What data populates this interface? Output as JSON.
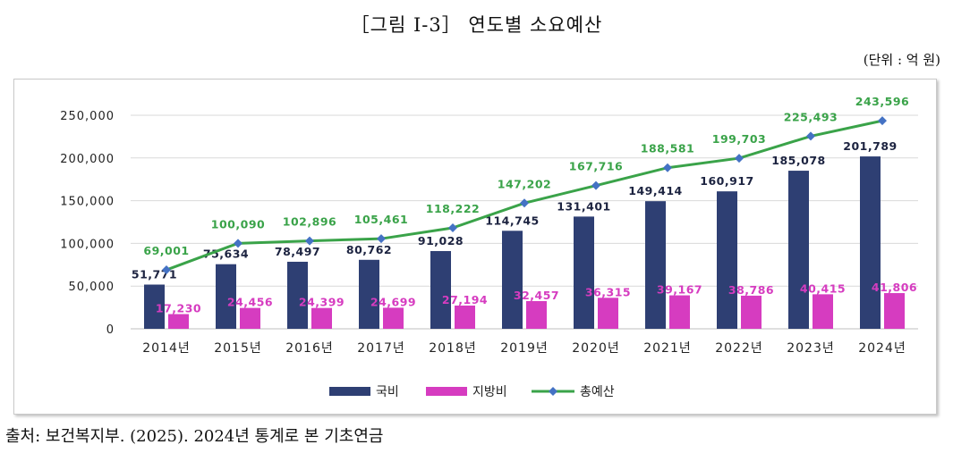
{
  "title": "［그림 Ⅰ-3］ 연도별 소요예산",
  "unit_note": "(단위 : 억 원)",
  "source": "출처: 보건복지부. (2025). 2024년 통계로 본 기초연금",
  "colors": {
    "national": "#2e3f73",
    "local": "#d63cc0",
    "total": "#3aa349",
    "total_marker": "#4472c4",
    "axis_text": "#222222",
    "grid": "#d9d9d9"
  },
  "chart_data": {
    "type": "bar",
    "categories": [
      "2014년",
      "2015년",
      "2016년",
      "2017년",
      "2018년",
      "2019년",
      "2020년",
      "2021년",
      "2022년",
      "2023년",
      "2024년"
    ],
    "series": [
      {
        "name": "국비",
        "type": "bar",
        "values": [
          51771,
          75634,
          78497,
          80762,
          91028,
          114745,
          131401,
          149414,
          160917,
          185078,
          201789
        ],
        "labels": [
          "51,771",
          "75,634",
          "78,497",
          "80,762",
          "91,028",
          "114,745",
          "131,401",
          "149,414",
          "160,917",
          "185,078",
          "201,789"
        ]
      },
      {
        "name": "지방비",
        "type": "bar",
        "values": [
          17230,
          24456,
          24399,
          24699,
          27194,
          32457,
          36315,
          39167,
          38786,
          40415,
          41806
        ],
        "labels": [
          "17,230",
          "24,456",
          "24,399",
          "24,699",
          "27,194",
          "32,457",
          "36,315",
          "39,167",
          "38,786",
          "40,415",
          "41,806"
        ]
      },
      {
        "name": "총예산",
        "type": "line",
        "values": [
          69001,
          100090,
          102896,
          105461,
          118222,
          147202,
          167716,
          188581,
          199703,
          225493,
          243596
        ],
        "labels": [
          "69,001",
          "100,090",
          "102,896",
          "105,461",
          "118,222",
          "147,202",
          "167,716",
          "188,581",
          "199,703",
          "225,493",
          "243,596"
        ]
      }
    ],
    "ylim": [
      0,
      250000
    ],
    "yticks": [
      0,
      50000,
      100000,
      150000,
      200000,
      250000
    ],
    "ytick_labels": [
      "0",
      "50,000",
      "100,000",
      "150,000",
      "200,000",
      "250,000"
    ],
    "xlabel": "",
    "ylabel": "",
    "grid": true,
    "legend": "bottom"
  }
}
